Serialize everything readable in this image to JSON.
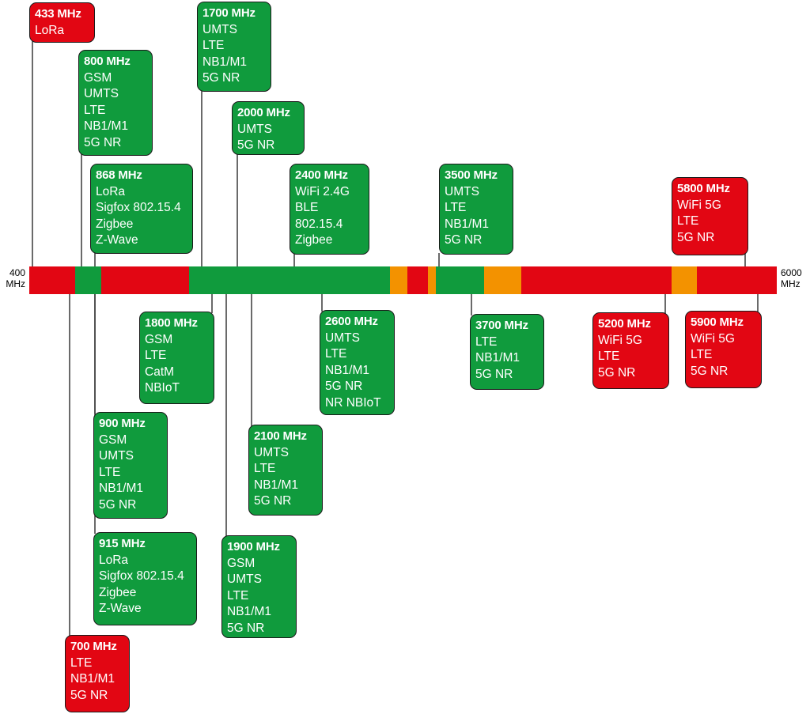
{
  "axis": {
    "min_value": "400",
    "min_unit": "MHz",
    "max_value": "6000",
    "max_unit": "MHz"
  },
  "colors": {
    "green": "#109b3d",
    "red": "#e20613",
    "orange": "#f39200",
    "line": "#1a1a1a"
  },
  "bar_segments": [
    {
      "color": "red"
    },
    {
      "color": "green"
    },
    {
      "color": "red"
    },
    {
      "color": "green"
    },
    {
      "color": "orange"
    },
    {
      "color": "red"
    },
    {
      "color": "orange"
    },
    {
      "color": "green"
    },
    {
      "color": "orange"
    },
    {
      "color": "red"
    },
    {
      "color": "orange"
    },
    {
      "color": "red"
    }
  ],
  "boxes": [
    {
      "id": "433",
      "freq": "433 MHz",
      "color": "red",
      "techs": [
        "LoRa"
      ]
    },
    {
      "id": "700",
      "freq": "700 MHz",
      "color": "red",
      "techs": [
        "LTE",
        "NB1/M1",
        "5G NR"
      ]
    },
    {
      "id": "800",
      "freq": "800 MHz",
      "color": "green",
      "techs": [
        "GSM",
        "UMTS",
        "LTE",
        "NB1/M1",
        "5G NR"
      ]
    },
    {
      "id": "868",
      "freq": "868 MHz",
      "color": "green",
      "techs": [
        "LoRa",
        "Sigfox 802.15.4",
        "Zigbee",
        "Z-Wave"
      ]
    },
    {
      "id": "900",
      "freq": "900 MHz",
      "color": "green",
      "techs": [
        "GSM",
        "UMTS",
        "LTE",
        "NB1/M1",
        "5G NR"
      ]
    },
    {
      "id": "915",
      "freq": "915 MHz",
      "color": "green",
      "techs": [
        "LoRa",
        "Sigfox 802.15.4",
        "Zigbee",
        "Z-Wave"
      ]
    },
    {
      "id": "1700",
      "freq": "1700 MHz",
      "color": "green",
      "techs": [
        "UMTS",
        "LTE",
        "NB1/M1",
        "5G NR"
      ]
    },
    {
      "id": "1800",
      "freq": "1800 MHz",
      "color": "green",
      "techs": [
        "GSM",
        "LTE",
        "CatM",
        "NBIoT"
      ]
    },
    {
      "id": "1900",
      "freq": "1900 MHz",
      "color": "green",
      "techs": [
        "GSM",
        "UMTS",
        "LTE",
        "NB1/M1",
        "5G NR"
      ]
    },
    {
      "id": "2000",
      "freq": "2000 MHz",
      "color": "green",
      "techs": [
        "UMTS",
        "5G NR"
      ]
    },
    {
      "id": "2100",
      "freq": "2100 MHz",
      "color": "green",
      "techs": [
        "UMTS",
        "LTE",
        "NB1/M1",
        "5G NR"
      ]
    },
    {
      "id": "2400",
      "freq": "2400 MHz",
      "color": "green",
      "techs": [
        "WiFi 2.4G",
        "BLE",
        "802.15.4",
        "Zigbee"
      ]
    },
    {
      "id": "2600",
      "freq": "2600 MHz",
      "color": "green",
      "techs": [
        "UMTS",
        "LTE",
        "NB1/M1",
        "5G NR",
        "NR NBIoT"
      ]
    },
    {
      "id": "3500",
      "freq": "3500 MHz",
      "color": "green",
      "techs": [
        "UMTS",
        "LTE",
        "NB1/M1",
        "5G NR"
      ]
    },
    {
      "id": "3700",
      "freq": "3700 MHz",
      "color": "green",
      "techs": [
        "LTE",
        "NB1/M1",
        "5G NR"
      ]
    },
    {
      "id": "5200",
      "freq": "5200 MHz",
      "color": "red",
      "techs": [
        "WiFi 5G",
        "LTE",
        "5G NR"
      ]
    },
    {
      "id": "5800",
      "freq": "5800 MHz",
      "color": "red",
      "techs": [
        "WiFi 5G",
        "LTE",
        "5G NR"
      ]
    },
    {
      "id": "5900",
      "freq": "5900 MHz",
      "color": "red",
      "techs": [
        "WiFi 5G",
        "LTE",
        "5G NR"
      ]
    }
  ]
}
